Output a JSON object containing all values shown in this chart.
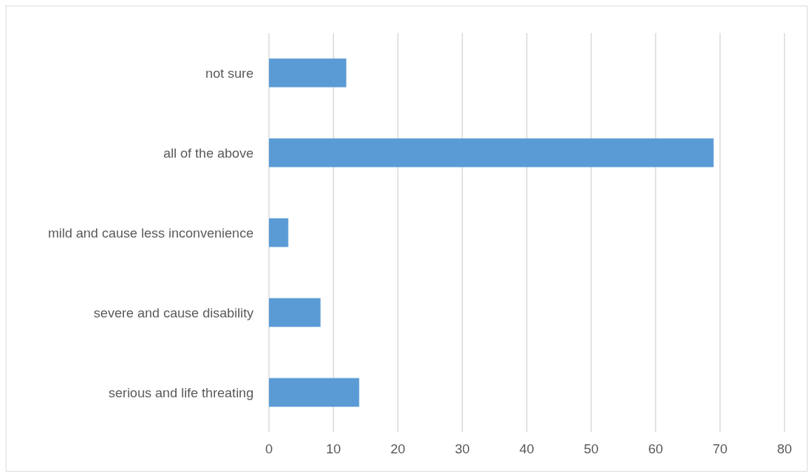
{
  "chart_data": {
    "type": "bar",
    "orientation": "horizontal",
    "categories": [
      "not sure",
      "all of the above",
      "mild and cause less inconvenience",
      "severe and cause disability",
      "serious and life threating"
    ],
    "values": [
      12,
      69,
      3,
      8,
      14
    ],
    "color": "#5b9bd5",
    "xlim": [
      0,
      80
    ],
    "xticks": [
      0,
      10,
      20,
      30,
      40,
      50,
      60,
      70,
      80
    ],
    "grid": "x"
  }
}
